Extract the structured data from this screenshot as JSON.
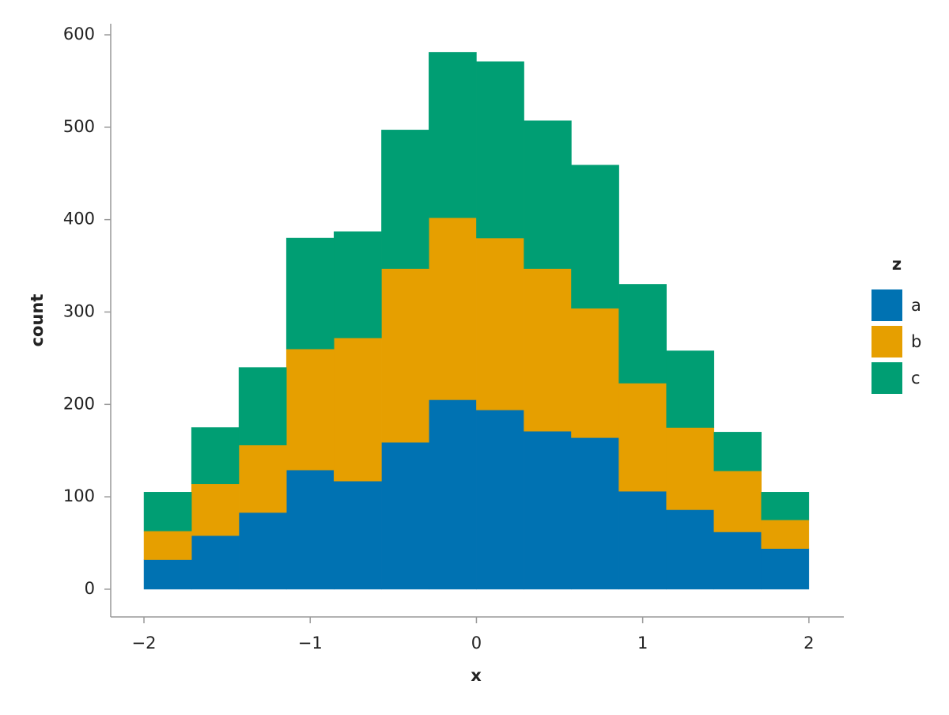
{
  "chart_data": {
    "type": "histogram",
    "stacked": true,
    "x_label": "x",
    "y_label": "count",
    "legend_title": "z",
    "legend_position": "right",
    "bins": [
      -2,
      -1.714,
      -1.429,
      -1.143,
      -0.857,
      -0.571,
      -0.286,
      0,
      0.286,
      0.571,
      0.857,
      1.143,
      1.429,
      1.714,
      2
    ],
    "series": [
      {
        "name": "a",
        "color": "#0072b2",
        "values": [
          32,
          58,
          83,
          129,
          117,
          159,
          205,
          194,
          171,
          164,
          106,
          86,
          62,
          44
        ]
      },
      {
        "name": "b",
        "color": "#e69f00",
        "values": [
          31,
          56,
          73,
          131,
          155,
          188,
          197,
          186,
          176,
          140,
          117,
          89,
          66,
          31
        ]
      },
      {
        "name": "c",
        "color": "#009e73",
        "values": [
          42,
          61,
          84,
          120,
          115,
          150,
          179,
          191,
          160,
          155,
          107,
          83,
          42,
          30
        ]
      }
    ],
    "xlim": [
      -2.2,
      2.21
    ],
    "ylim": [
      -30,
      612
    ],
    "xticks": [
      {
        "value": -2,
        "label": "−2"
      },
      {
        "value": -1,
        "label": "−1"
      },
      0,
      1,
      2
    ],
    "yticks": [
      0,
      100,
      200,
      300,
      400,
      500,
      600
    ],
    "grid": false
  }
}
